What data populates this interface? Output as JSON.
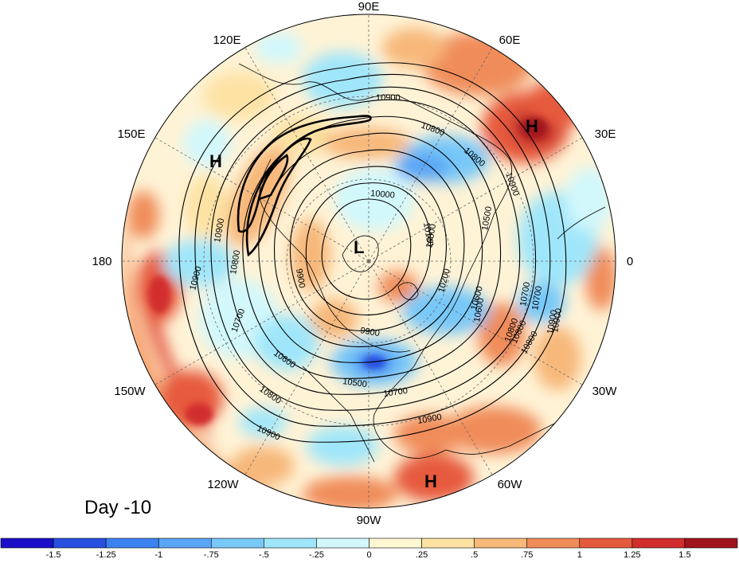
{
  "map": {
    "day_label": "Day -10",
    "longitude_labels": [
      "90E",
      "120E",
      "60E",
      "150E",
      "30E",
      "180",
      "0",
      "150W",
      "30W",
      "120W",
      "60W",
      "90W"
    ],
    "pressure_centers": [
      "H",
      "H",
      "L",
      "H"
    ],
    "contour_labels": [
      "10900",
      "10800",
      "10900",
      "10800",
      "10000",
      "9900",
      "10900",
      "10800",
      "10700",
      "10600",
      "10500",
      "10700",
      "10900",
      "10800",
      "10900",
      "10800",
      "10700",
      "10600",
      "10800",
      "10900",
      "10500",
      "9900",
      "10100",
      "10200",
      "10500",
      "10600",
      "10700",
      "10800",
      "10900",
      "10900"
    ]
  },
  "colorbar": {
    "colors": [
      "#1a0fc7",
      "#2850e0",
      "#3c82f0",
      "#5aa5f5",
      "#78c8f8",
      "#a0e6fa",
      "#d2f8fc",
      "#fff8d2",
      "#fde2a4",
      "#f7b87a",
      "#f08c5a",
      "#e65a3c",
      "#d22d2d",
      "#a0141e"
    ],
    "tick_labels": [
      "-1.5",
      "-1.25",
      "-1",
      "-.75",
      "-.5",
      "-.25",
      "0",
      ".25",
      ".5",
      ".75",
      "1",
      "1.25",
      "1.5"
    ]
  }
}
